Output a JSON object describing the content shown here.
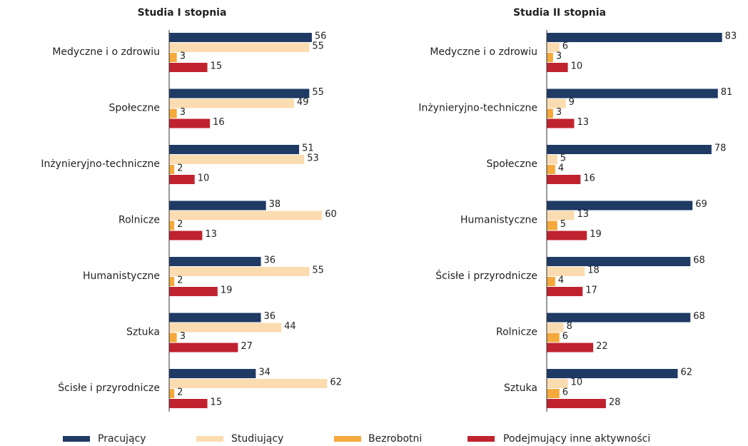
{
  "chart_data": [
    {
      "type": "bar",
      "orientation": "horizontal",
      "title": "Studia I stopnia",
      "categories": [
        "Medyczne i o zdrowiu",
        "Społeczne",
        "Inżynieryjno-techniczne",
        "Rolnicze",
        "Humanistyczne",
        "Sztuka",
        "Ścisłe i przyrodnicze"
      ],
      "xlim": [
        0,
        100
      ],
      "series": [
        {
          "name": "Pracujący",
          "color": "#1f3a64",
          "values": [
            56,
            55,
            51,
            38,
            36,
            36,
            34
          ]
        },
        {
          "name": "Studiujący",
          "color": "#fbdcb0",
          "values": [
            55,
            49,
            53,
            60,
            55,
            44,
            62
          ]
        },
        {
          "name": "Bezrobotni",
          "color": "#f5a93a",
          "values": [
            3,
            3,
            2,
            2,
            2,
            3,
            2
          ]
        },
        {
          "name": "Podejmujący inne aktywności",
          "color": "#c0232f",
          "values": [
            15,
            16,
            10,
            13,
            19,
            27,
            15
          ]
        }
      ]
    },
    {
      "type": "bar",
      "orientation": "horizontal",
      "title": "Studia II stopnia",
      "categories": [
        "Medyczne i o zdrowiu",
        "Inżynieryjno-techniczne",
        "Społeczne",
        "Humanistyczne",
        "Ścisłe i przyrodnicze",
        "Rolnicze",
        "Sztuka"
      ],
      "xlim": [
        0,
        100
      ],
      "series": [
        {
          "name": "Pracujący",
          "color": "#1f3a64",
          "values": [
            83,
            81,
            78,
            69,
            68,
            68,
            62
          ]
        },
        {
          "name": "Studiujący",
          "color": "#fbdcb0",
          "values": [
            6,
            9,
            5,
            13,
            18,
            8,
            10
          ]
        },
        {
          "name": "Bezrobotni",
          "color": "#f5a93a",
          "values": [
            3,
            3,
            4,
            5,
            4,
            6,
            6
          ]
        },
        {
          "name": "Podejmujący inne aktywności",
          "color": "#c0232f",
          "values": [
            10,
            13,
            16,
            19,
            17,
            22,
            28
          ]
        }
      ]
    }
  ]
}
